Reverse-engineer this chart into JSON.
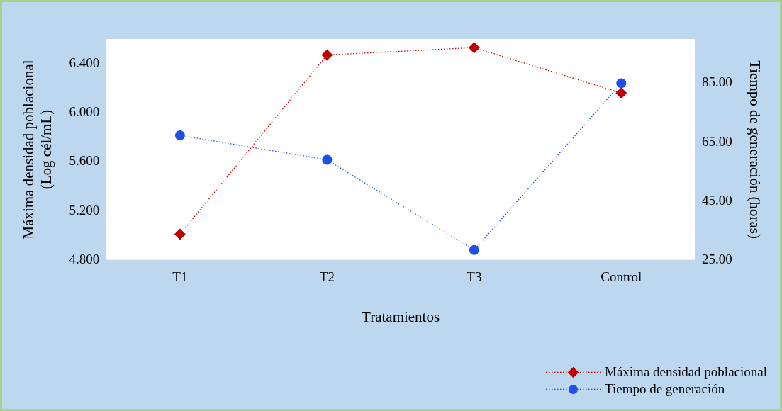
{
  "chart_data": {
    "type": "line",
    "xlabel": "Tratamientos",
    "ylabel": "Máxima densidad poblacional\n(Log cél/mL)",
    "y2label": "Tiempo de generación (horas)",
    "categories": [
      "T1",
      "T2",
      "T3",
      "Control"
    ],
    "series": [
      {
        "name": "Máxima densidad poblacional",
        "color": "#c00000",
        "marker": "diamond",
        "values": [
          5.01,
          6.47,
          6.53,
          6.16
        ]
      },
      {
        "name": "Tiempo de generación",
        "color": "#1f4fe8",
        "marker": "circle",
        "axis": "y2",
        "values": [
          67.3,
          59.0,
          28.4,
          85.0
        ]
      }
    ],
    "ylim": [
      4.8,
      6.6
    ],
    "yticks": [
      {
        "value": 4.8,
        "label": "4.800"
      },
      {
        "value": 5.2,
        "label": "5.200"
      },
      {
        "value": 5.6,
        "label": "5.600"
      },
      {
        "value": 6.0,
        "label": "6.000"
      },
      {
        "value": 6.4,
        "label": "6.400"
      }
    ],
    "y2lim": [
      25,
      100
    ],
    "y2ticks": [
      {
        "value": 25,
        "label": "25.00"
      },
      {
        "value": 45,
        "label": "45.00"
      },
      {
        "value": 65,
        "label": "65.00"
      },
      {
        "value": 85,
        "label": "85.00"
      }
    ],
    "grid": false,
    "legend": "bottom right",
    "line_style": "dotted"
  }
}
